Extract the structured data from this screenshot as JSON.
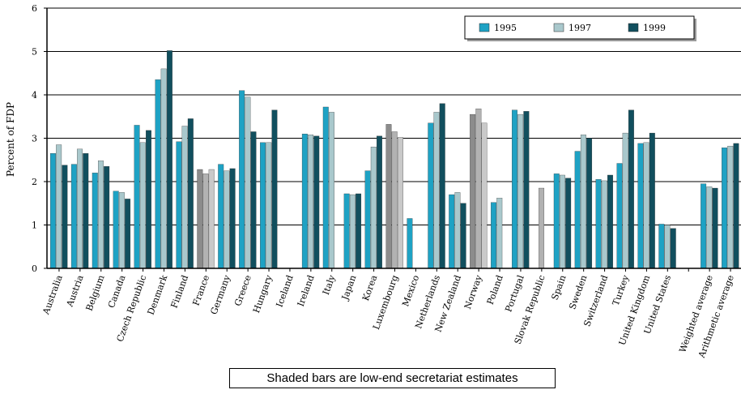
{
  "chart_data": {
    "type": "bar",
    "ylabel": "Percent of FDP",
    "ylim": [
      0,
      6
    ],
    "yticks": [
      "0",
      "1",
      "2",
      "3",
      "4",
      "5",
      "6"
    ],
    "grid": true,
    "legend_position": "top-right",
    "categories": [
      "Australia",
      "Austria",
      "Belgium",
      "Canada",
      "Czech Republic",
      "Denmark",
      "Finland",
      "France",
      "Germany",
      "Greece",
      "Hungary",
      "Iceland",
      "Ireland",
      "Italy",
      "Japan",
      "Korea",
      "Luxembourg",
      "Mexico",
      "Netherlands",
      "New Zealand",
      "Norway",
      "Poland",
      "Portugal",
      "Slovak Republic",
      "Spain",
      "Sweden",
      "Switzerland",
      "Turkey",
      "United Kingdom",
      "United States",
      "",
      "Weighted average",
      "Arithmetic average"
    ],
    "series": [
      {
        "name": "1995",
        "color": "#1ea2c4",
        "values": [
          2.65,
          2.4,
          2.2,
          1.78,
          3.3,
          4.35,
          2.92,
          2.28,
          2.4,
          4.1,
          2.9,
          null,
          3.1,
          3.72,
          1.72,
          2.25,
          3.32,
          1.15,
          3.35,
          1.7,
          3.55,
          1.52,
          3.65,
          null,
          2.18,
          2.7,
          2.05,
          2.42,
          2.88,
          1.02,
          null,
          1.95,
          2.78
        ]
      },
      {
        "name": "1997",
        "color": "#a9c8cc",
        "values": [
          2.85,
          2.75,
          2.48,
          1.75,
          2.9,
          4.6,
          3.28,
          2.18,
          2.25,
          3.95,
          2.9,
          null,
          3.08,
          3.6,
          1.7,
          2.8,
          3.15,
          null,
          3.6,
          1.75,
          3.68,
          1.62,
          3.55,
          1.85,
          2.15,
          3.08,
          2.02,
          3.12,
          2.9,
          1.0,
          null,
          1.88,
          2.82
        ]
      },
      {
        "name": "1999",
        "color": "#114f5e",
        "values": [
          2.38,
          2.65,
          2.35,
          1.6,
          3.18,
          5.02,
          3.45,
          2.28,
          2.3,
          3.15,
          3.65,
          null,
          3.05,
          null,
          1.72,
          3.05,
          3.02,
          null,
          3.8,
          1.5,
          3.35,
          null,
          3.62,
          null,
          2.08,
          3.0,
          2.15,
          3.65,
          3.12,
          0.92,
          null,
          1.85,
          2.88
        ]
      }
    ],
    "shaded_indices": [
      7,
      16,
      20,
      23
    ],
    "shaded_colors": [
      "#8c8c8c",
      "#b2b2b2",
      "#c9c9c9"
    ]
  },
  "note": "Shaded bars are low-end secretariat estimates"
}
